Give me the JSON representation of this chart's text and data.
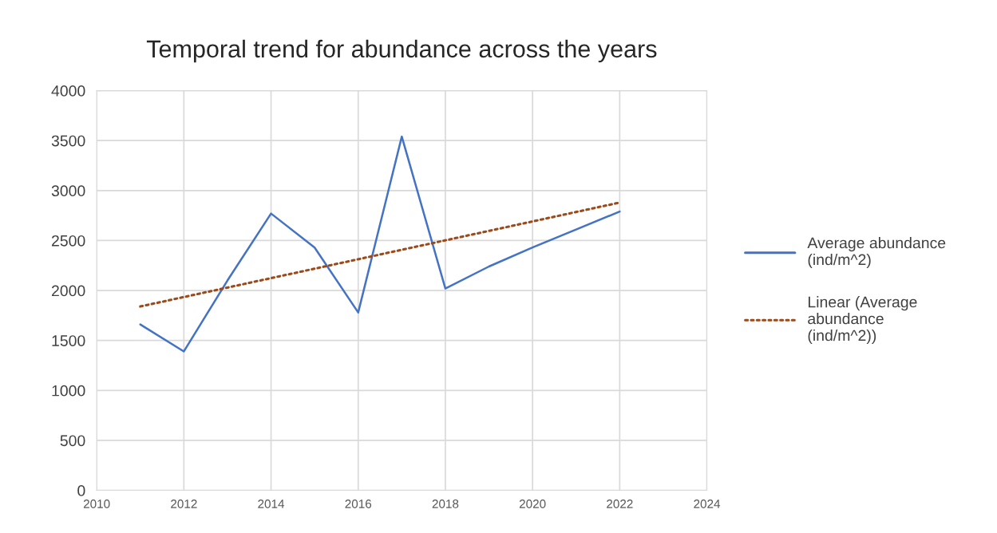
{
  "chart_data": {
    "type": "line",
    "title": "Temporal trend for abundance across the years",
    "x": [
      2011,
      2012,
      2013,
      2014,
      2015,
      2016,
      2017,
      2018,
      2019,
      2020,
      2021,
      2022
    ],
    "series": [
      {
        "name": "Average abundance (ind/m^2)",
        "color": "#4472c4",
        "values": [
          1660,
          1390,
          2100,
          2770,
          2430,
          1780,
          3540,
          2020,
          2240,
          2430,
          2610,
          2790
        ],
        "line_style": "solid"
      },
      {
        "name": "Linear (Average abundance (ind/m^2))",
        "color": "#9c4a1a",
        "x": [
          2011,
          2022
        ],
        "values": [
          1840,
          2880
        ],
        "line_style": "dotted"
      }
    ],
    "xlim": [
      2010,
      2024
    ],
    "xticks": [
      2010,
      2012,
      2014,
      2016,
      2018,
      2020,
      2022,
      2024
    ],
    "ylim": [
      0,
      4000
    ],
    "yticks": [
      0,
      500,
      1000,
      1500,
      2000,
      2500,
      3000,
      3500,
      4000
    ],
    "grid": true,
    "legend": "right",
    "marker": "none"
  }
}
